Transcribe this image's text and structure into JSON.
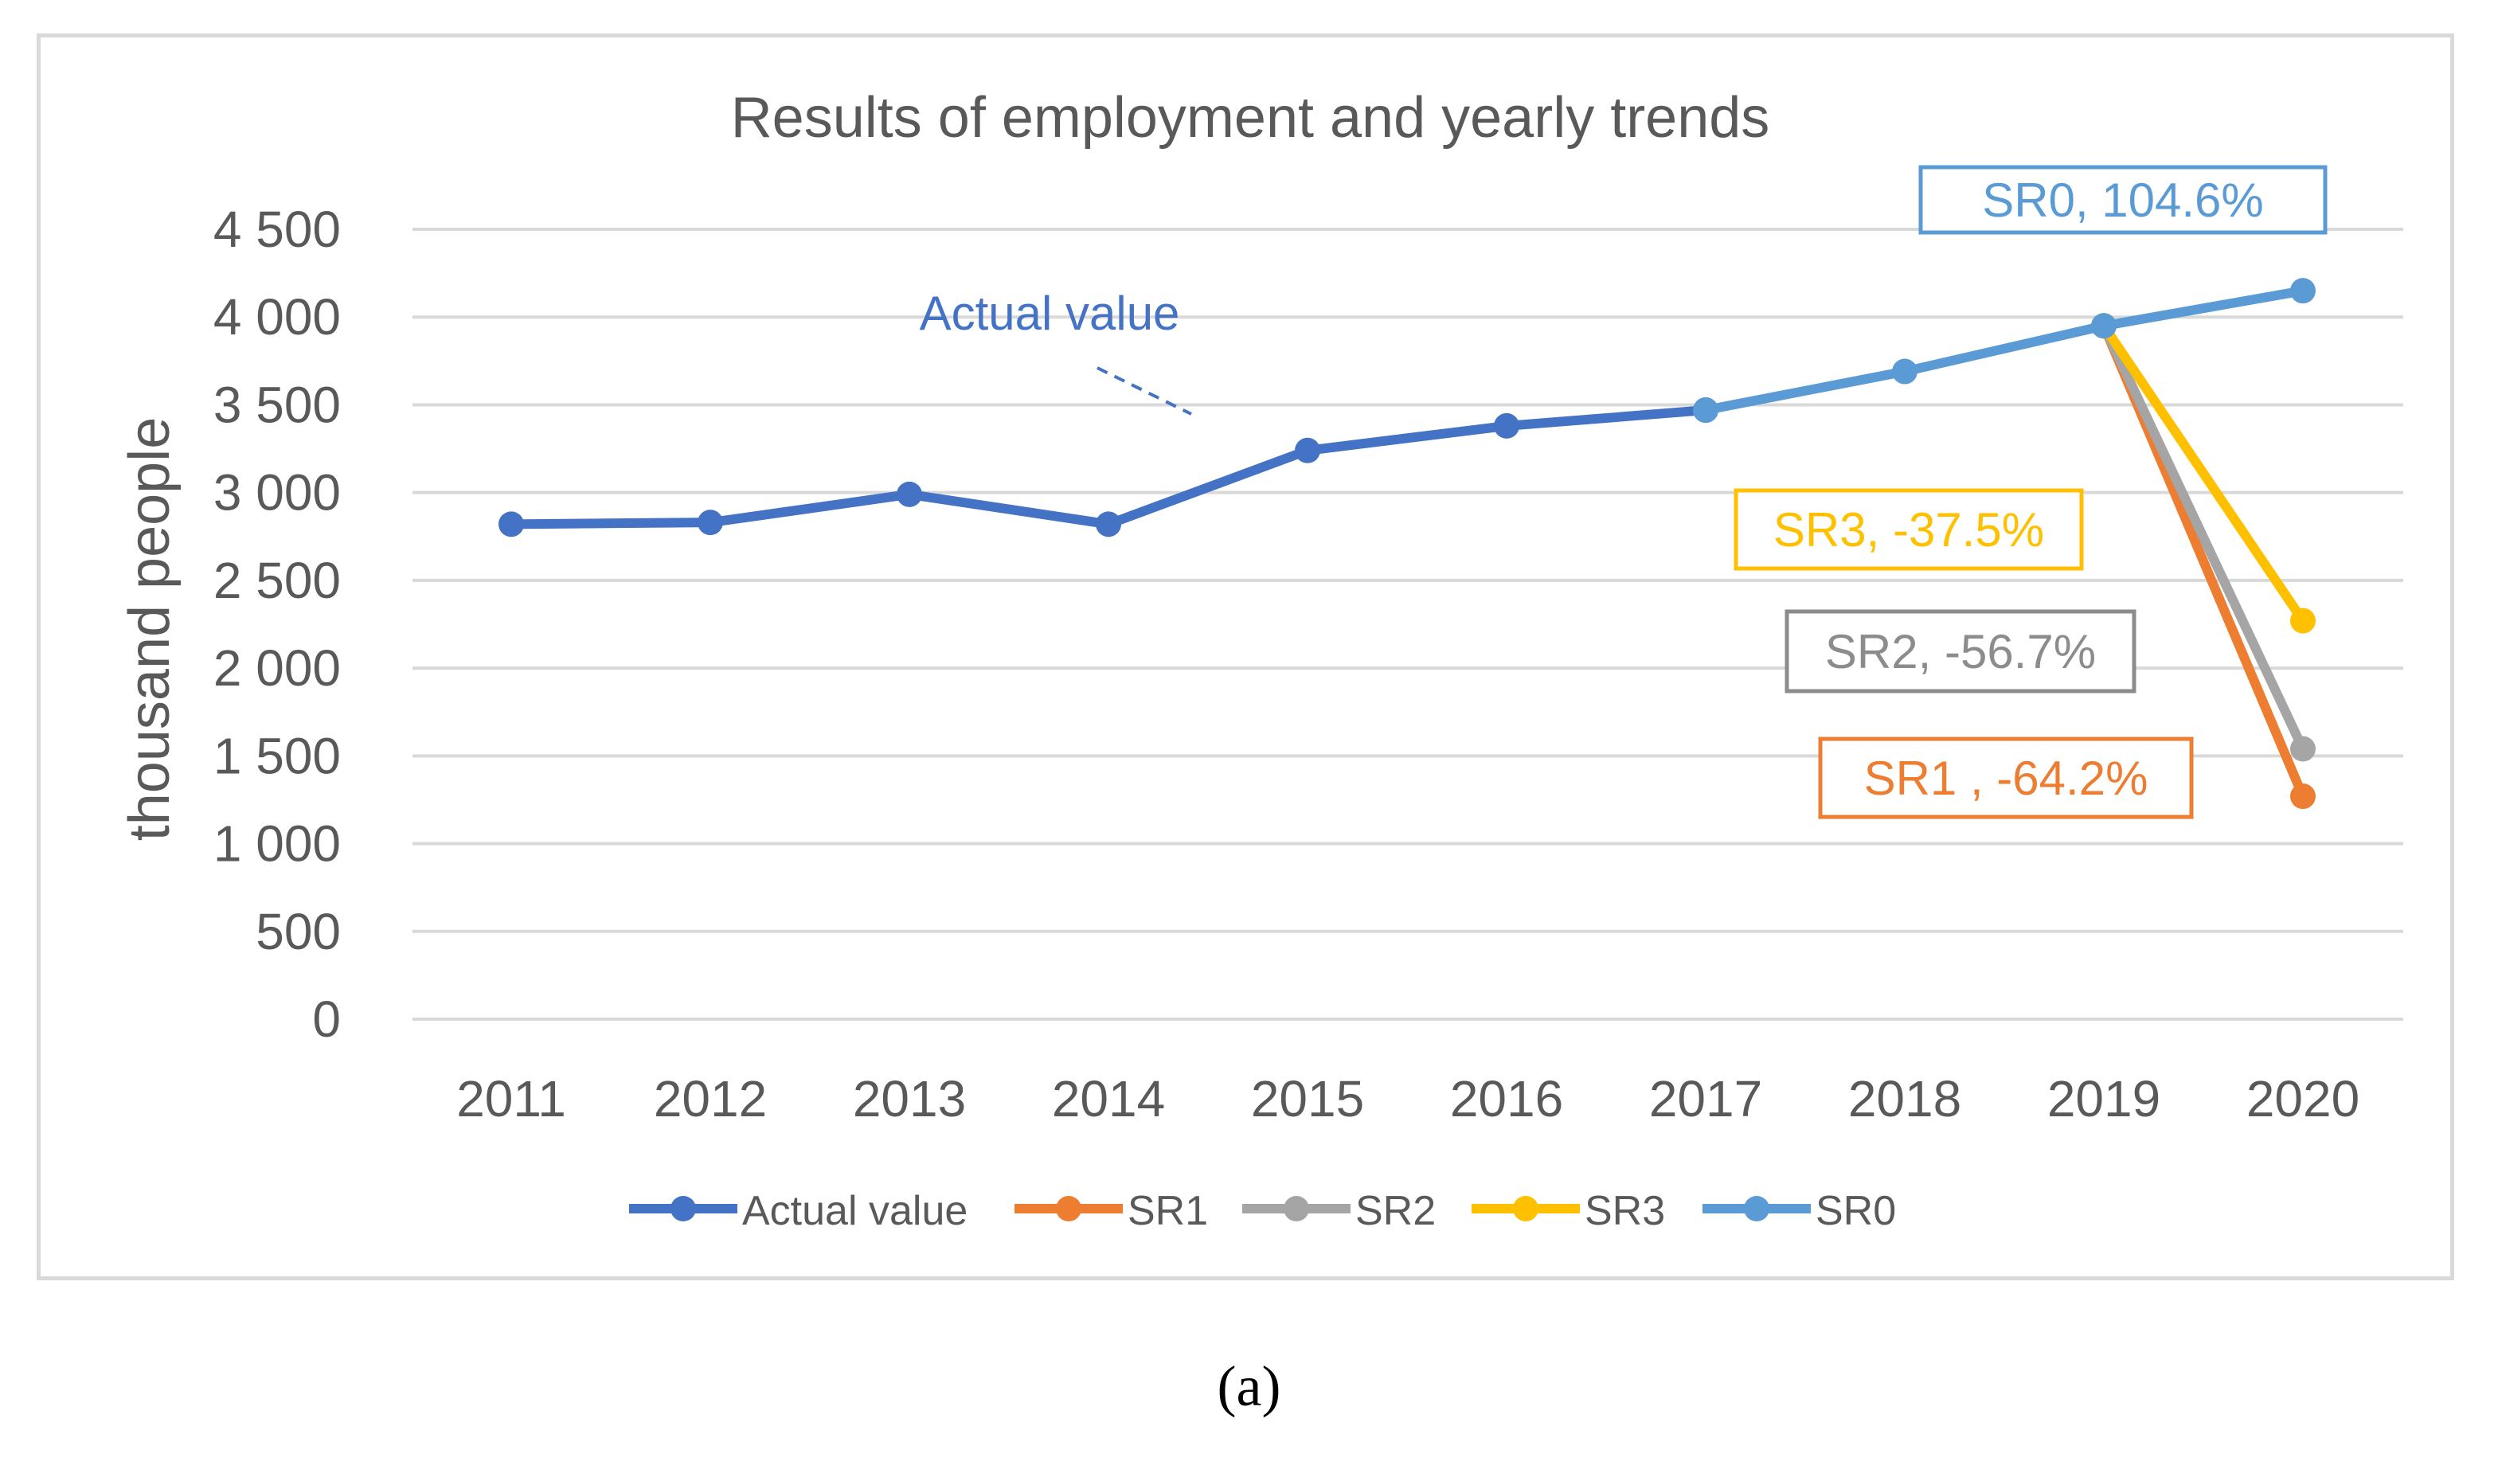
{
  "panel_label": "(a)",
  "chart_data": {
    "type": "line",
    "title": "Results of employment and yearly trends",
    "xlabel": "",
    "ylabel": "thousand people",
    "ylim": [
      0,
      4500
    ],
    "yticks": [
      0,
      500,
      1000,
      1500,
      2000,
      2500,
      3000,
      3500,
      4000,
      4500
    ],
    "ytick_labels": [
      "0",
      "500",
      "1 000",
      "1 500",
      "2 000",
      "2 500",
      "3 000",
      "3 500",
      "4 000",
      "4 500"
    ],
    "categories": [
      "2011",
      "2012",
      "2013",
      "2014",
      "2015",
      "2016",
      "2017",
      "2018",
      "2019",
      "2020"
    ],
    "grid": true,
    "legend_position": "bottom",
    "series": [
      {
        "name": "Actual value",
        "color": "#4472c4",
        "x": [
          "2011",
          "2012",
          "2013",
          "2014",
          "2015",
          "2016",
          "2017"
        ],
        "values": [
          2820,
          2830,
          2990,
          2820,
          3240,
          3380,
          3470
        ]
      },
      {
        "name": "SR1",
        "color": "#ed7d31",
        "x": [
          "2019",
          "2020"
        ],
        "values": [
          3950,
          1270
        ]
      },
      {
        "name": "SR2",
        "color": "#a5a5a5",
        "x": [
          "2019",
          "2020"
        ],
        "values": [
          3950,
          1540
        ]
      },
      {
        "name": "SR3",
        "color": "#ffc000",
        "x": [
          "2019",
          "2020"
        ],
        "values": [
          3950,
          2270
        ]
      },
      {
        "name": "SR0",
        "color": "#5b9bd5",
        "x": [
          "2017",
          "2018",
          "2019",
          "2020"
        ],
        "values": [
          3470,
          3690,
          3950,
          4150
        ]
      }
    ],
    "annotations": {
      "actual": {
        "text": "Actual value",
        "color": "#4472c4"
      },
      "sr0": {
        "text": "SR0, 104.6%",
        "color": "#5b9bd5"
      },
      "sr3": {
        "text": "SR3, -37.5%",
        "color": "#ffc000"
      },
      "sr2": {
        "text": "SR2, -56.7%",
        "color": "#8c8c8c"
      },
      "sr1": {
        "text": "SR1 , -64.2%",
        "color": "#ed7d31"
      }
    }
  }
}
